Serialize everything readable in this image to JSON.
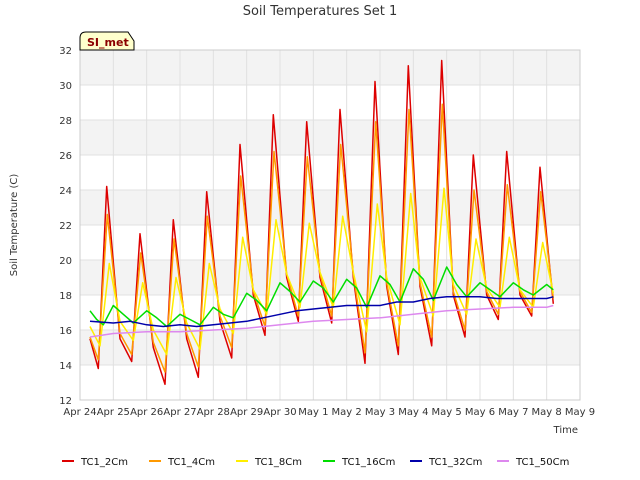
{
  "chart_data": {
    "type": "line",
    "title": "Soil Temperatures Set 1",
    "xlabel": "Time",
    "ylabel": "Soil Temperature (C)",
    "site_badge": "SI_met",
    "ylim": [
      12,
      32
    ],
    "yticks": [
      12,
      14,
      16,
      18,
      20,
      22,
      24,
      26,
      28,
      30,
      32
    ],
    "xlim": [
      0,
      15
    ],
    "xticks": [
      {
        "x": 0,
        "label": "Apr 24"
      },
      {
        "x": 1,
        "label": "Apr 25"
      },
      {
        "x": 2,
        "label": "Apr 26"
      },
      {
        "x": 3,
        "label": "Apr 27"
      },
      {
        "x": 4,
        "label": "Apr 28"
      },
      {
        "x": 5,
        "label": "Apr 29"
      },
      {
        "x": 6,
        "label": "Apr 30"
      },
      {
        "x": 7,
        "label": "May 1"
      },
      {
        "x": 8,
        "label": "May 2"
      },
      {
        "x": 9,
        "label": "May 3"
      },
      {
        "x": 10,
        "label": "May 4"
      },
      {
        "x": 11,
        "label": "May 5"
      },
      {
        "x": 12,
        "label": "May 6"
      },
      {
        "x": 13,
        "label": "May 7"
      },
      {
        "x": 14,
        "label": "May 8"
      },
      {
        "x": 15,
        "label": "May 9"
      }
    ],
    "grid": true,
    "legend_position": "bottom",
    "series": [
      {
        "name": "TC1_2Cm",
        "color": "#dd0000",
        "points": [
          [
            0.3,
            15.5
          ],
          [
            0.55,
            13.8
          ],
          [
            0.8,
            24.2
          ],
          [
            1.2,
            15.5
          ],
          [
            1.55,
            14.2
          ],
          [
            1.8,
            21.5
          ],
          [
            2.2,
            15.0
          ],
          [
            2.55,
            12.9
          ],
          [
            2.8,
            22.3
          ],
          [
            3.2,
            15.5
          ],
          [
            3.55,
            13.3
          ],
          [
            3.8,
            23.9
          ],
          [
            4.2,
            16.5
          ],
          [
            4.55,
            14.4
          ],
          [
            4.8,
            26.6
          ],
          [
            5.2,
            18.0
          ],
          [
            5.55,
            15.7
          ],
          [
            5.8,
            28.3
          ],
          [
            6.2,
            19.0
          ],
          [
            6.55,
            16.5
          ],
          [
            6.8,
            27.9
          ],
          [
            7.2,
            19.0
          ],
          [
            7.55,
            16.4
          ],
          [
            7.8,
            28.6
          ],
          [
            8.2,
            19.0
          ],
          [
            8.55,
            14.1
          ],
          [
            8.85,
            30.2
          ],
          [
            9.2,
            18.5
          ],
          [
            9.55,
            14.6
          ],
          [
            9.85,
            31.1
          ],
          [
            10.2,
            18.5
          ],
          [
            10.55,
            15.1
          ],
          [
            10.85,
            31.4
          ],
          [
            11.2,
            18.0
          ],
          [
            11.55,
            15.6
          ],
          [
            11.8,
            26.0
          ],
          [
            12.2,
            18.0
          ],
          [
            12.55,
            16.6
          ],
          [
            12.8,
            26.2
          ],
          [
            13.2,
            18.0
          ],
          [
            13.55,
            16.8
          ],
          [
            13.8,
            25.3
          ],
          [
            14.2,
            17.5
          ]
        ]
      },
      {
        "name": "TC1_4Cm",
        "color": "#ff9900",
        "points": [
          [
            0.3,
            15.6
          ],
          [
            0.55,
            14.3
          ],
          [
            0.82,
            22.6
          ],
          [
            1.2,
            15.8
          ],
          [
            1.55,
            14.6
          ],
          [
            1.82,
            20.4
          ],
          [
            2.2,
            15.3
          ],
          [
            2.55,
            13.6
          ],
          [
            2.82,
            21.2
          ],
          [
            3.2,
            15.8
          ],
          [
            3.55,
            13.9
          ],
          [
            3.82,
            22.5
          ],
          [
            4.2,
            16.8
          ],
          [
            4.55,
            15.0
          ],
          [
            4.82,
            24.8
          ],
          [
            5.2,
            18.2
          ],
          [
            5.55,
            16.2
          ],
          [
            5.82,
            26.2
          ],
          [
            6.2,
            19.2
          ],
          [
            6.55,
            16.8
          ],
          [
            6.82,
            25.9
          ],
          [
            7.2,
            19.2
          ],
          [
            7.55,
            16.8
          ],
          [
            7.82,
            26.6
          ],
          [
            8.2,
            19.2
          ],
          [
            8.55,
            14.7
          ],
          [
            8.87,
            27.9
          ],
          [
            9.2,
            18.7
          ],
          [
            9.55,
            15.1
          ],
          [
            9.87,
            28.6
          ],
          [
            10.2,
            18.7
          ],
          [
            10.55,
            15.6
          ],
          [
            10.87,
            28.9
          ],
          [
            11.2,
            18.2
          ],
          [
            11.55,
            16.0
          ],
          [
            11.82,
            24.0
          ],
          [
            12.2,
            18.2
          ],
          [
            12.55,
            16.9
          ],
          [
            12.82,
            24.3
          ],
          [
            13.2,
            18.2
          ],
          [
            13.55,
            17.0
          ],
          [
            13.82,
            23.9
          ],
          [
            14.2,
            17.8
          ]
        ]
      },
      {
        "name": "TC1_8Cm",
        "color": "#ffee00",
        "points": [
          [
            0.3,
            16.2
          ],
          [
            0.6,
            15.1
          ],
          [
            0.88,
            19.8
          ],
          [
            1.2,
            16.5
          ],
          [
            1.6,
            15.4
          ],
          [
            1.88,
            18.7
          ],
          [
            2.2,
            16.0
          ],
          [
            2.6,
            14.6
          ],
          [
            2.88,
            19.0
          ],
          [
            3.2,
            16.4
          ],
          [
            3.6,
            14.9
          ],
          [
            3.88,
            19.8
          ],
          [
            4.2,
            17.2
          ],
          [
            4.6,
            15.8
          ],
          [
            4.88,
            21.3
          ],
          [
            5.2,
            18.3
          ],
          [
            5.6,
            16.9
          ],
          [
            5.88,
            22.3
          ],
          [
            6.2,
            19.2
          ],
          [
            6.6,
            17.3
          ],
          [
            6.88,
            22.1
          ],
          [
            7.2,
            19.3
          ],
          [
            7.6,
            17.3
          ],
          [
            7.88,
            22.5
          ],
          [
            8.2,
            19.3
          ],
          [
            8.6,
            15.9
          ],
          [
            8.92,
            23.2
          ],
          [
            9.2,
            19.0
          ],
          [
            9.6,
            16.3
          ],
          [
            9.92,
            23.8
          ],
          [
            10.2,
            19.0
          ],
          [
            10.6,
            16.8
          ],
          [
            10.92,
            24.1
          ],
          [
            11.2,
            18.6
          ],
          [
            11.6,
            16.9
          ],
          [
            11.88,
            21.2
          ],
          [
            12.2,
            18.4
          ],
          [
            12.6,
            17.3
          ],
          [
            12.88,
            21.3
          ],
          [
            13.2,
            18.3
          ],
          [
            13.6,
            17.3
          ],
          [
            13.88,
            21.0
          ],
          [
            14.2,
            18.1
          ]
        ]
      },
      {
        "name": "TC1_16Cm",
        "color": "#00dd00",
        "points": [
          [
            0.3,
            17.1
          ],
          [
            0.5,
            16.6
          ],
          [
            0.7,
            16.3
          ],
          [
            1.0,
            17.4
          ],
          [
            1.3,
            16.9
          ],
          [
            1.6,
            16.4
          ],
          [
            2.0,
            17.1
          ],
          [
            2.3,
            16.7
          ],
          [
            2.6,
            16.2
          ],
          [
            3.0,
            16.9
          ],
          [
            3.3,
            16.6
          ],
          [
            3.6,
            16.3
          ],
          [
            4.0,
            17.3
          ],
          [
            4.3,
            16.9
          ],
          [
            4.6,
            16.7
          ],
          [
            5.0,
            18.1
          ],
          [
            5.3,
            17.7
          ],
          [
            5.6,
            17.1
          ],
          [
            6.0,
            18.7
          ],
          [
            6.3,
            18.2
          ],
          [
            6.6,
            17.6
          ],
          [
            7.0,
            18.8
          ],
          [
            7.3,
            18.4
          ],
          [
            7.6,
            17.6
          ],
          [
            8.0,
            18.9
          ],
          [
            8.3,
            18.4
          ],
          [
            8.6,
            17.3
          ],
          [
            9.0,
            19.1
          ],
          [
            9.3,
            18.6
          ],
          [
            9.6,
            17.6
          ],
          [
            10.0,
            19.5
          ],
          [
            10.3,
            18.9
          ],
          [
            10.6,
            17.7
          ],
          [
            11.0,
            19.6
          ],
          [
            11.3,
            18.6
          ],
          [
            11.6,
            17.9
          ],
          [
            12.0,
            18.7
          ],
          [
            12.3,
            18.3
          ],
          [
            12.6,
            17.9
          ],
          [
            13.0,
            18.7
          ],
          [
            13.3,
            18.3
          ],
          [
            13.6,
            18.0
          ],
          [
            14.0,
            18.6
          ],
          [
            14.2,
            18.3
          ]
        ]
      },
      {
        "name": "TC1_32Cm",
        "color": "#0000aa",
        "points": [
          [
            0.3,
            16.5
          ],
          [
            1.0,
            16.4
          ],
          [
            1.5,
            16.5
          ],
          [
            2.0,
            16.3
          ],
          [
            2.5,
            16.2
          ],
          [
            3.0,
            16.3
          ],
          [
            3.5,
            16.2
          ],
          [
            4.0,
            16.3
          ],
          [
            4.5,
            16.4
          ],
          [
            5.0,
            16.5
          ],
          [
            5.5,
            16.7
          ],
          [
            6.0,
            16.9
          ],
          [
            6.5,
            17.1
          ],
          [
            7.0,
            17.2
          ],
          [
            7.5,
            17.3
          ],
          [
            8.0,
            17.4
          ],
          [
            8.5,
            17.4
          ],
          [
            9.0,
            17.4
          ],
          [
            9.5,
            17.6
          ],
          [
            10.0,
            17.6
          ],
          [
            10.5,
            17.8
          ],
          [
            11.0,
            17.9
          ],
          [
            11.5,
            17.9
          ],
          [
            12.0,
            17.9
          ],
          [
            12.5,
            17.8
          ],
          [
            13.0,
            17.8
          ],
          [
            13.5,
            17.8
          ],
          [
            14.0,
            17.8
          ],
          [
            14.2,
            17.9
          ]
        ]
      },
      {
        "name": "TC1_50Cm",
        "color": "#dd88ee",
        "points": [
          [
            0.3,
            15.6
          ],
          [
            1.0,
            15.8
          ],
          [
            2.0,
            15.9
          ],
          [
            3.0,
            15.9
          ],
          [
            4.0,
            16.0
          ],
          [
            5.0,
            16.1
          ],
          [
            6.0,
            16.3
          ],
          [
            7.0,
            16.5
          ],
          [
            8.0,
            16.6
          ],
          [
            9.0,
            16.7
          ],
          [
            10.0,
            16.9
          ],
          [
            11.0,
            17.1
          ],
          [
            12.0,
            17.2
          ],
          [
            13.0,
            17.3
          ],
          [
            14.0,
            17.3
          ],
          [
            14.2,
            17.4
          ]
        ]
      }
    ]
  }
}
